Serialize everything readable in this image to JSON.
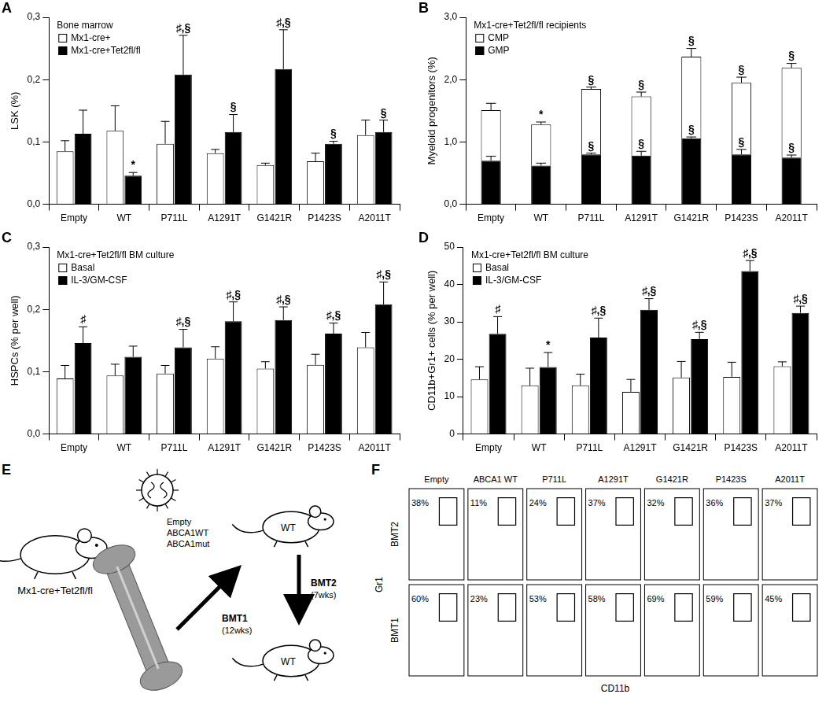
{
  "chart_data": [
    {
      "panel": "A",
      "type": "bar",
      "title": "Bone marrow",
      "y_label": "LSK (%)",
      "legend": "top-left",
      "grid": false,
      "categories": [
        "Empty",
        "WT",
        "P711L",
        "A1291T",
        "G1421R",
        "P1423S",
        "A2011T"
      ],
      "ylim": [
        0,
        0.3
      ],
      "yticks": [
        {
          "value": 0,
          "label": "0,0"
        },
        {
          "value": 0.1,
          "label": "0,1"
        },
        {
          "value": 0.2,
          "label": "0,2"
        },
        {
          "value": 0.3,
          "label": "0,3"
        }
      ],
      "series": [
        {
          "name": "Mx1-cre+",
          "color": "#ffffff",
          "values": [
            0.085,
            0.118,
            0.097,
            0.082,
            0.063,
            0.069,
            0.111
          ],
          "errors": [
            0.017,
            0.04,
            0.036,
            0.006,
            0.003,
            0.013,
            0.024
          ],
          "annotations": [
            null,
            null,
            null,
            null,
            null,
            null,
            null
          ]
        },
        {
          "name": "Mx1-cre+Tet2fl/fl",
          "color": "#000000",
          "values": [
            0.113,
            0.046,
            0.208,
            0.116,
            0.217,
            0.097,
            0.116
          ],
          "errors": [
            0.038,
            0.005,
            0.063,
            0.028,
            0.063,
            0.004,
            0.019
          ],
          "annotations": [
            null,
            "*",
            "♯,§",
            "§",
            "♯,§",
            "§",
            "§"
          ]
        }
      ]
    },
    {
      "panel": "B",
      "type": "bar",
      "stacked": true,
      "title": "Mx1-cre+Tet2fl/fl recipients",
      "y_label": "Myeloid progenitors (%)",
      "legend": "top-left",
      "grid": false,
      "categories": [
        "Empty",
        "WT",
        "P711L",
        "A1291T",
        "G1421R",
        "P1423S",
        "A2011T"
      ],
      "ylim": [
        0,
        3
      ],
      "yticks": [
        {
          "value": 0,
          "label": "0,0"
        },
        {
          "value": 1,
          "label": "1,0"
        },
        {
          "value": 2,
          "label": "2,0"
        },
        {
          "value": 3,
          "label": "3,0"
        }
      ],
      "series": [
        {
          "name": "CMP",
          "color": "#ffffff",
          "values": [
            0.81,
            0.66,
            1.05,
            0.95,
            1.31,
            1.15,
            1.44
          ],
          "errors": [
            0.11,
            0.04,
            0.03,
            0.07,
            0.13,
            0.09,
            0.07
          ],
          "annotations": [
            null,
            "*",
            "§",
            "§",
            "§",
            "§",
            "§"
          ]
        },
        {
          "name": "GMP",
          "color": "#000000",
          "values": [
            0.7,
            0.62,
            0.8,
            0.78,
            1.06,
            0.8,
            0.75
          ],
          "errors": [
            0.07,
            0.04,
            0.02,
            0.07,
            0.02,
            0.08,
            0.04
          ],
          "annotations": [
            null,
            null,
            "§",
            "§",
            "§",
            "§",
            "§"
          ]
        }
      ]
    },
    {
      "panel": "C",
      "type": "bar",
      "title": "Mx1-cre+Tet2fl/fl BM culture",
      "y_label": "HSPCs (% per well)",
      "legend": "top-left",
      "grid": false,
      "categories": [
        "Empty",
        "WT",
        "P711L",
        "A1291T",
        "G1421R",
        "P1423S",
        "A2011T"
      ],
      "ylim": [
        0,
        0.3
      ],
      "yticks": [
        {
          "value": 0,
          "label": "0,0"
        },
        {
          "value": 0.1,
          "label": "0,1"
        },
        {
          "value": 0.2,
          "label": "0,2"
        },
        {
          "value": 0.3,
          "label": "0,3"
        }
      ],
      "series": [
        {
          "name": "Basal",
          "color": "#ffffff",
          "values": [
            0.089,
            0.094,
            0.097,
            0.121,
            0.105,
            0.111,
            0.139
          ],
          "errors": [
            0.021,
            0.018,
            0.013,
            0.019,
            0.011,
            0.017,
            0.024
          ],
          "annotations": [
            null,
            null,
            null,
            null,
            null,
            null,
            null
          ]
        },
        {
          "name": "IL-3/GM-CSF",
          "color": "#000000",
          "values": [
            0.146,
            0.124,
            0.139,
            0.181,
            0.183,
            0.161,
            0.208
          ],
          "errors": [
            0.026,
            0.017,
            0.029,
            0.031,
            0.021,
            0.017,
            0.036
          ],
          "annotations": [
            "♯",
            null,
            "♯,§",
            "♯,§",
            "♯,§",
            "♯,§",
            "♯,§"
          ]
        }
      ]
    },
    {
      "panel": "D",
      "type": "bar",
      "title": "Mx1-cre+Tet2fl/fl BM culture",
      "y_label": "CD11b+Gr1+ cells (% per well)",
      "legend": "top-left",
      "grid": false,
      "categories": [
        "Empty",
        "WT",
        "P711L",
        "A1291T",
        "G1421R",
        "P1423S",
        "A2011T"
      ],
      "ylim": [
        0,
        50
      ],
      "yticks": [
        0,
        10,
        20,
        30,
        40,
        50
      ],
      "series": [
        {
          "name": "Basal",
          "color": "#ffffff",
          "values": [
            14.6,
            13.0,
            13.0,
            11.3,
            15.1,
            15.3,
            18.1
          ],
          "errors": [
            3.4,
            4.6,
            3.0,
            3.3,
            4.3,
            3.9,
            1.2
          ],
          "annotations": [
            null,
            null,
            null,
            null,
            null,
            null,
            null
          ]
        },
        {
          "name": "IL-3/GM-CSF",
          "color": "#000000",
          "values": [
            26.8,
            17.9,
            25.8,
            33.2,
            25.4,
            43.6,
            32.4
          ],
          "errors": [
            4.6,
            3.9,
            5.2,
            3.0,
            1.8,
            2.8,
            1.8
          ],
          "annotations": [
            "♯",
            "*",
            "♯,§",
            "♯,§",
            "♯,§",
            "♯,§",
            "♯,§"
          ]
        }
      ]
    }
  ],
  "panel_E": {
    "panel": "E",
    "donor": "Mx1-cre+Tet2fl/fl",
    "vectors": [
      "Empty",
      "ABCA1WT",
      "ABCA1mut"
    ],
    "transplants": [
      {
        "label": "BMT1",
        "duration": "(12wks)",
        "recipient": "WT"
      },
      {
        "label": "BMT2",
        "duration": "(7wks)",
        "recipient": "WT"
      }
    ]
  },
  "panel_F": {
    "panel": "F",
    "x_label": "CD11b",
    "y_label": "Gr1",
    "columns": [
      "Empty",
      "ABCA1 WT",
      "P711L",
      "A1291T",
      "G1421R",
      "P1423S",
      "A2011T"
    ],
    "rows": [
      {
        "name": "BMT2",
        "values": [
          38,
          11,
          24,
          37,
          32,
          36,
          37
        ],
        "value_labels": [
          "38%",
          "11%",
          "24%",
          "37%",
          "32%",
          "36%",
          "37%"
        ]
      },
      {
        "name": "BMT1",
        "values": [
          60,
          23,
          53,
          58,
          69,
          59,
          45
        ],
        "value_labels": [
          "60%",
          "23%",
          "53%",
          "58%",
          "69%",
          "59%",
          "45%"
        ]
      }
    ]
  }
}
